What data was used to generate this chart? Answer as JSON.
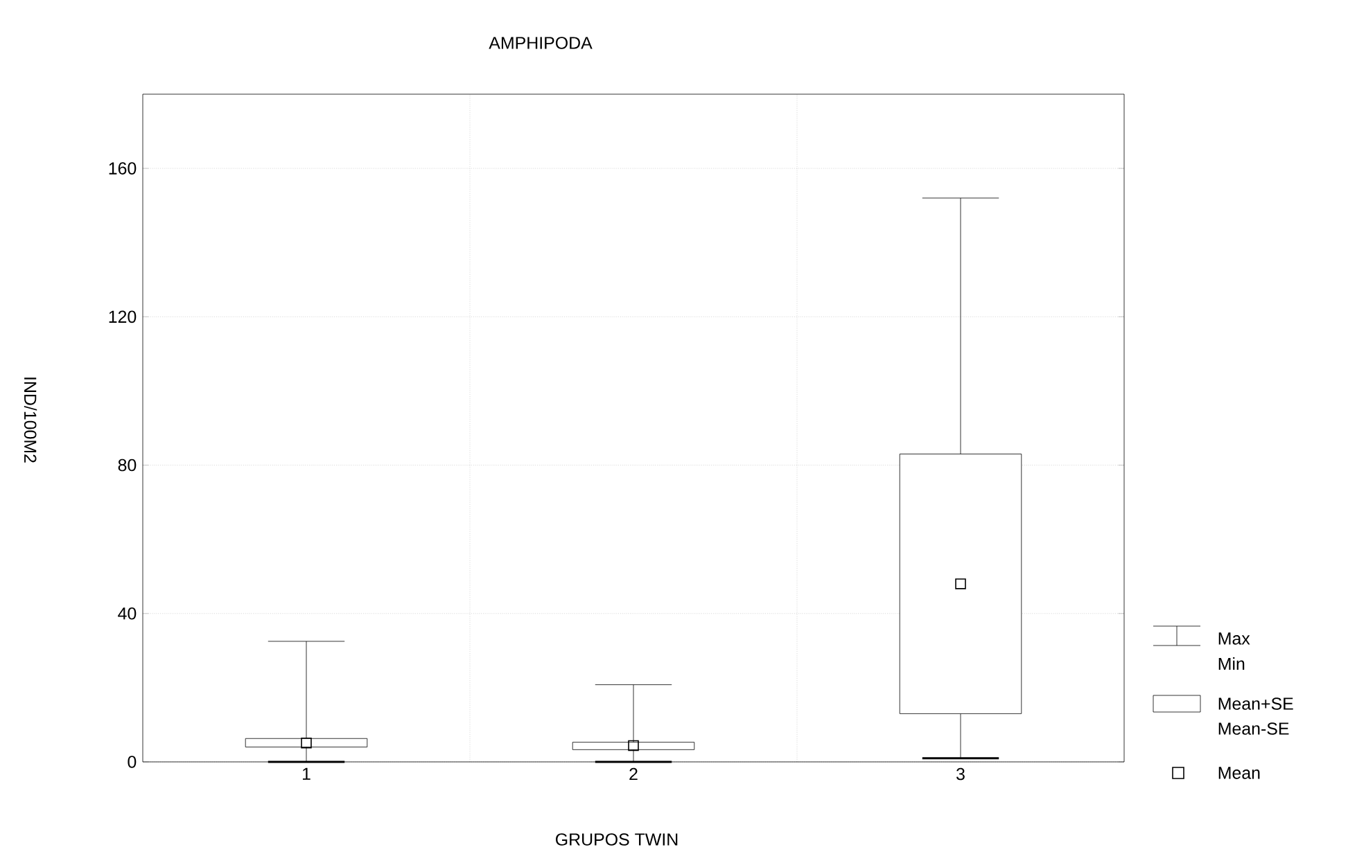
{
  "chart_data": {
    "type": "box",
    "title": "AMPHIPODA",
    "xlabel": "GRUPOS TWIN",
    "ylabel": "IND/100M2",
    "categories": [
      "1",
      "2",
      "3"
    ],
    "boxes": [
      {
        "low": 0,
        "q1": 4,
        "q3": 6.3,
        "high": 32.5,
        "mean": 5.1
      },
      {
        "low": 0,
        "q1": 3.3,
        "q3": 5.3,
        "high": 20.8,
        "mean": 4.4
      },
      {
        "low": 1,
        "q1": 13,
        "q3": 83,
        "high": 152,
        "mean": 48
      }
    ],
    "ylim": [
      0,
      180
    ],
    "yticks": [
      0,
      40,
      80,
      120,
      160
    ],
    "grid": true,
    "marker": "square",
    "annotations": [
      "Max",
      "Min",
      "Mean+SE",
      "Mean-SE",
      "Mean"
    ]
  }
}
